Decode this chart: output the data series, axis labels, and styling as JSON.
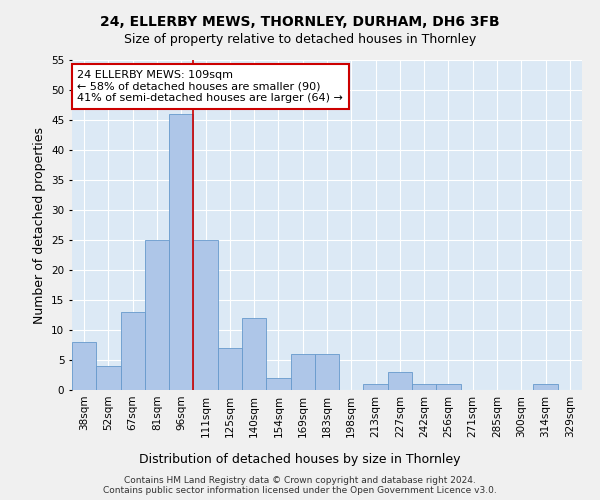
{
  "title": "24, ELLERBY MEWS, THORNLEY, DURHAM, DH6 3FB",
  "subtitle": "Size of property relative to detached houses in Thornley",
  "xlabel": "Distribution of detached houses by size in Thornley",
  "ylabel": "Number of detached properties",
  "categories": [
    "38sqm",
    "52sqm",
    "67sqm",
    "81sqm",
    "96sqm",
    "111sqm",
    "125sqm",
    "140sqm",
    "154sqm",
    "169sqm",
    "183sqm",
    "198sqm",
    "213sqm",
    "227sqm",
    "242sqm",
    "256sqm",
    "271sqm",
    "285sqm",
    "300sqm",
    "314sqm",
    "329sqm"
  ],
  "values": [
    8,
    4,
    13,
    25,
    46,
    25,
    7,
    12,
    2,
    6,
    6,
    0,
    1,
    3,
    1,
    1,
    0,
    0,
    0,
    1,
    0
  ],
  "bar_color": "#aec6e8",
  "bar_edge_color": "#6699cc",
  "vline_color": "#cc0000",
  "vline_x_index": 4.5,
  "annotation_text": "24 ELLERBY MEWS: 109sqm\n← 58% of detached houses are smaller (90)\n41% of semi-detached houses are larger (64) →",
  "annotation_box_color": "#ffffff",
  "annotation_box_edge": "#cc0000",
  "ylim": [
    0,
    55
  ],
  "yticks": [
    0,
    5,
    10,
    15,
    20,
    25,
    30,
    35,
    40,
    45,
    50,
    55
  ],
  "footer": "Contains HM Land Registry data © Crown copyright and database right 2024.\nContains public sector information licensed under the Open Government Licence v3.0.",
  "bg_color": "#dce9f5",
  "fig_bg_color": "#f0f0f0",
  "grid_color": "#ffffff",
  "title_fontsize": 10,
  "subtitle_fontsize": 9,
  "tick_fontsize": 7.5,
  "label_fontsize": 9,
  "annotation_fontsize": 8,
  "footer_fontsize": 6.5
}
